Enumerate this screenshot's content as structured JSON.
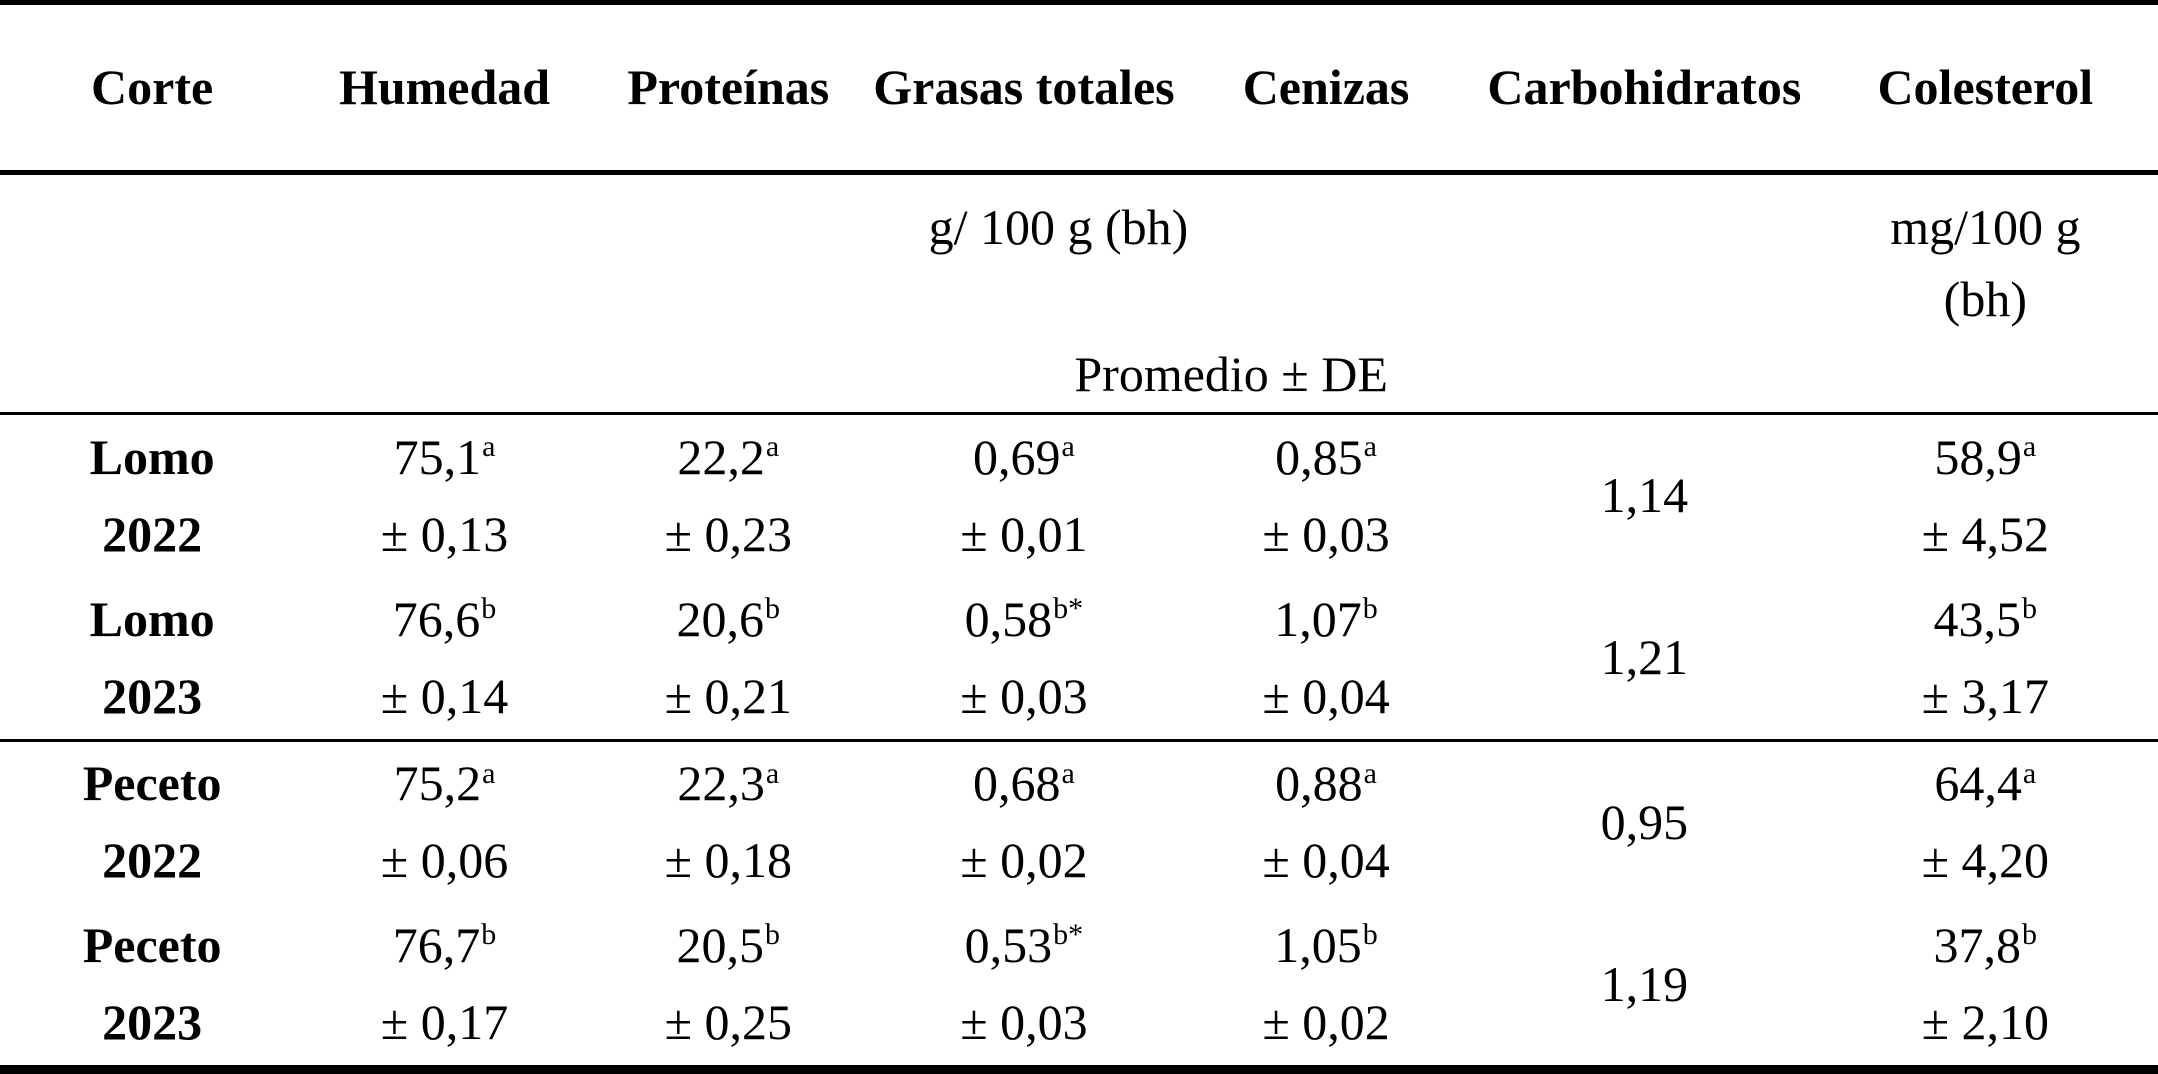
{
  "table": {
    "header": {
      "corte": "Corte",
      "humedad": "Humedad",
      "proteinas": "Proteínas",
      "grasas": "Grasas totales",
      "cenizas": "Cenizas",
      "carbohidratos": "Carbohidratos",
      "colesterol": "Colesterol"
    },
    "units": {
      "g_unit": "g/ 100 g (bh)",
      "mg_unit_line1": "mg/100 g",
      "mg_unit_line2": "(bh)"
    },
    "stat_label": "Promedio ± DE",
    "rows": [
      {
        "cut": "Lomo",
        "year": "2022",
        "humedad": {
          "value": "75,1",
          "sup": "a",
          "sd": "± 0,13"
        },
        "proteinas": {
          "value": "22,2",
          "sup": "a",
          "sd": "± 0,23"
        },
        "grasas": {
          "value": "0,69",
          "sup": "a",
          "sd": "± 0,01"
        },
        "cenizas": {
          "value": "0,85",
          "sup": "a",
          "sd": "± 0,03"
        },
        "carbohidratos": "1,14",
        "colesterol": {
          "value": "58,9",
          "sup": "a",
          "sd": "± 4,52"
        }
      },
      {
        "cut": "Lomo",
        "year": "2023",
        "humedad": {
          "value": "76,6",
          "sup": "b",
          "sd": "± 0,14"
        },
        "proteinas": {
          "value": "20,6",
          "sup": "b",
          "sd": "± 0,21"
        },
        "grasas": {
          "value": "0,58",
          "sup": "b*",
          "sd": "± 0,03"
        },
        "cenizas": {
          "value": "1,07",
          "sup": "b",
          "sd": "± 0,04"
        },
        "carbohidratos": "1,21",
        "colesterol": {
          "value": "43,5",
          "sup": "b",
          "sd": "± 3,17"
        }
      },
      {
        "cut": "Peceto",
        "year": "2022",
        "humedad": {
          "value": "75,2",
          "sup": "a",
          "sd": "± 0,06"
        },
        "proteinas": {
          "value": "22,3",
          "sup": "a",
          "sd": "± 0,18"
        },
        "grasas": {
          "value": "0,68",
          "sup": "a",
          "sd": "± 0,02"
        },
        "cenizas": {
          "value": "0,88",
          "sup": "a",
          "sd": "± 0,04"
        },
        "carbohidratos": "0,95",
        "colesterol": {
          "value": "64,4",
          "sup": "a",
          "sd": "± 4,20"
        }
      },
      {
        "cut": "Peceto",
        "year": "2023",
        "humedad": {
          "value": "76,7",
          "sup": "b",
          "sd": "± 0,17"
        },
        "proteinas": {
          "value": "20,5",
          "sup": "b",
          "sd": "± 0,25"
        },
        "grasas": {
          "value": "0,53",
          "sup": "b*",
          "sd": "± 0,03"
        },
        "cenizas": {
          "value": "1,05",
          "sup": "b",
          "sd": "± 0,02"
        },
        "carbohidratos": "1,19",
        "colesterol": {
          "value": "37,8",
          "sup": "b",
          "sd": "± 2,10"
        }
      }
    ],
    "colors": {
      "text": "#000000",
      "background": "#ffffff",
      "rule": "#000000"
    }
  },
  "chart_data": {
    "type": "table",
    "title": "",
    "columns": [
      "Corte",
      "Humedad",
      "Proteínas",
      "Grasas totales",
      "Cenizas",
      "Carbohidratos",
      "Colesterol"
    ],
    "units_row": [
      "",
      "g/ 100 g (bh)",
      "g/ 100 g (bh)",
      "g/ 100 g (bh)",
      "g/ 100 g (bh)",
      "g/ 100 g (bh)",
      "mg/100 g (bh)"
    ],
    "stat_row": "Promedio ± DE",
    "rows": [
      [
        "Lomo 2022",
        "75,1a ± 0,13",
        "22,2a ± 0,23",
        "0,69a ± 0,01",
        "0,85a ± 0,03",
        "1,14",
        "58,9a ± 4,52"
      ],
      [
        "Lomo 2023",
        "76,6b ± 0,14",
        "20,6b ± 0,21",
        "0,58b* ± 0,03",
        "1,07b ± 0,04",
        "1,21",
        "43,5b ± 3,17"
      ],
      [
        "Peceto 2022",
        "75,2a ± 0,06",
        "22,3a ± 0,18",
        "0,68a ± 0,02",
        "0,88a ± 0,04",
        "0,95",
        "64,4a ± 4,20"
      ],
      [
        "Peceto 2023",
        "76,7b ± 0,17",
        "20,5b ± 0,25",
        "0,53b* ± 0,03",
        "1,05b ± 0,02",
        "1,19",
        "37,8b ± 2,10"
      ]
    ]
  }
}
